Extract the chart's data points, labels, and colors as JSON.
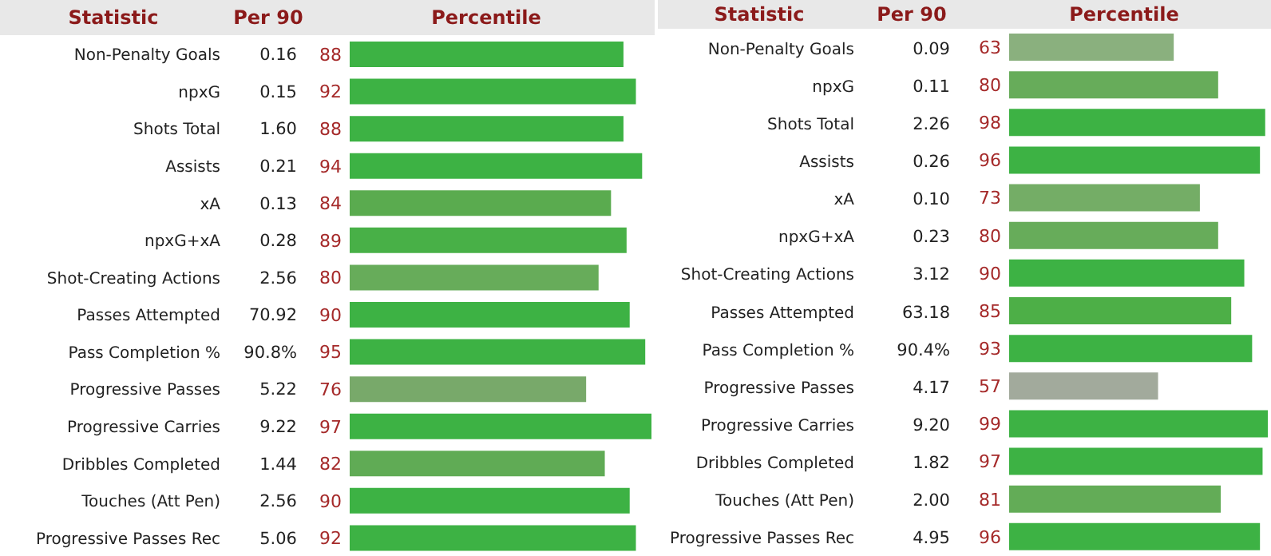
{
  "chart_data": [
    {
      "type": "bar",
      "orientation": "horizontal",
      "ylabel": "Statistic",
      "xlabel": "Percentile",
      "tick_labels": "y",
      "data_labels": true,
      "categories": [
        "Non-Penalty Goals",
        "npxG",
        "Shots Total",
        "Assists",
        "xA",
        "npxG+xA",
        "Shot-Creating Actions",
        "Passes Attempted",
        "Pass Completion %",
        "Progressive Passes",
        "Progressive Carries",
        "Dribbles Completed",
        "Touches (Att Pen)",
        "Progressive Passes Rec"
      ],
      "values": [
        88,
        92,
        88,
        94,
        84,
        89,
        80,
        90,
        95,
        76,
        97,
        82,
        90,
        92
      ],
      "colors": [
        "#3db244",
        "#3db244",
        "#3db244",
        "#3db244",
        "#5aab4f",
        "#48b047",
        "#67ac5a",
        "#3db244",
        "#3db244",
        "#78a96a",
        "#3db244",
        "#60ab55",
        "#3db244",
        "#3db244"
      ],
      "annotations": [
        "Per 90",
        "0.16",
        "0.15",
        "1.60",
        "0.21",
        "0.13",
        "0.28",
        "2.56",
        "70.92",
        "90.8%",
        "5.22",
        "9.22",
        "1.44",
        "2.56",
        "5.06"
      ]
    },
    {
      "type": "bar",
      "orientation": "horizontal",
      "ylabel": "Statistic",
      "xlabel": "Percentile",
      "tick_labels": "y",
      "data_labels": true,
      "categories": [
        "Non-Penalty Goals",
        "npxG",
        "Shots Total",
        "Assists",
        "xA",
        "npxG+xA",
        "Shot-Creating Actions",
        "Passes Attempted",
        "Pass Completion %",
        "Progressive Passes",
        "Progressive Carries",
        "Dribbles Completed",
        "Touches (Att Pen)",
        "Progressive Passes Rec"
      ],
      "values": [
        63,
        80,
        98,
        96,
        73,
        80,
        90,
        85,
        93,
        57,
        99,
        97,
        81,
        96
      ],
      "colors": [
        "#8ab07e",
        "#67ac5a",
        "#3db244",
        "#3db244",
        "#74ad66",
        "#67ac5a",
        "#3db244",
        "#4daf47",
        "#3db244",
        "#a2aa9c",
        "#3db244",
        "#3db244",
        "#63ac57",
        "#3db244"
      ],
      "annotations": [
        "Per 90",
        "0.09",
        "0.11",
        "2.26",
        "0.26",
        "0.10",
        "0.23",
        "3.12",
        "63.18",
        "90.4%",
        "4.17",
        "9.20",
        "1.82",
        "2.00",
        "4.95"
      ]
    }
  ]
}
